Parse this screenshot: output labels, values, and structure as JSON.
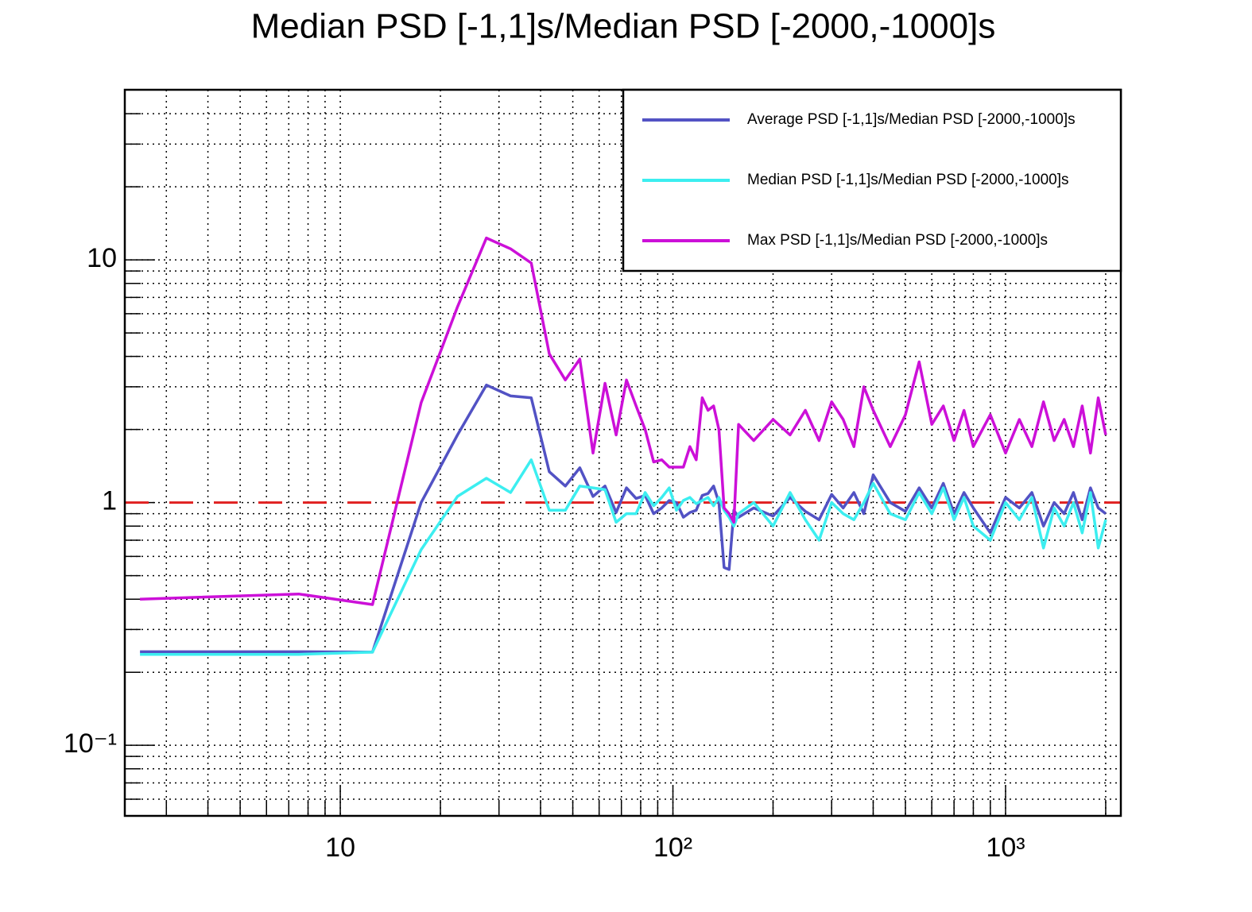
{
  "chart_data": {
    "type": "line",
    "title": "Median PSD [-1,1]s/Median PSD [-2000,-1000]s",
    "x": [
      2.5,
      7.5,
      12.5,
      17.5,
      22.5,
      27.5,
      32.5,
      37.5,
      42.5,
      47.5,
      52.5,
      57.5,
      62.5,
      67.5,
      72.5,
      77.5,
      82.5,
      87.5,
      92.5,
      97.5,
      102.5,
      107.5,
      112.5,
      117.5,
      122.5,
      127.5,
      132.5,
      137.5,
      142.5,
      147.5,
      152.5,
      157.5,
      175,
      200,
      225,
      250,
      275,
      300,
      325,
      350,
      375,
      400,
      450,
      500,
      550,
      600,
      650,
      700,
      750,
      800,
      900,
      1000,
      1100,
      1200,
      1300,
      1400,
      1500,
      1600,
      1700,
      1800,
      1900,
      2000
    ],
    "series": [
      {
        "name": "Average PSD [-1,1]s/Median PSD [-2000,-1000]s",
        "color": "#5252c4",
        "values": [
          0.243,
          0.243,
          0.242,
          1.0,
          1.9,
          3.05,
          2.75,
          2.7,
          1.34,
          1.17,
          1.39,
          1.06,
          1.17,
          0.91,
          1.15,
          1.04,
          1.07,
          0.9,
          0.95,
          1.02,
          1.0,
          0.87,
          0.91,
          0.93,
          1.07,
          1.09,
          1.17,
          1.0,
          0.54,
          0.53,
          0.93,
          0.87,
          0.95,
          0.88,
          1.05,
          0.92,
          0.85,
          1.08,
          0.95,
          1.1,
          0.9,
          1.3,
          1.0,
          0.92,
          1.15,
          0.95,
          1.2,
          0.9,
          1.1,
          0.95,
          0.75,
          1.05,
          0.95,
          1.1,
          0.8,
          1.0,
          0.9,
          1.1,
          0.85,
          1.15,
          0.95,
          0.9
        ]
      },
      {
        "name": "Median PSD [-1,1]s/Median PSD [-2000,-1000]s",
        "color": "#3ceef0",
        "values": [
          0.237,
          0.237,
          0.242,
          0.64,
          1.06,
          1.26,
          1.1,
          1.5,
          0.93,
          0.93,
          1.17,
          1.15,
          1.13,
          0.83,
          0.9,
          0.9,
          1.1,
          0.97,
          1.05,
          1.15,
          0.93,
          1.02,
          1.05,
          0.99,
          1.02,
          1.05,
          0.97,
          1.05,
          0.93,
          0.87,
          0.8,
          0.9,
          1.0,
          0.8,
          1.1,
          0.85,
          0.7,
          1.0,
          0.9,
          0.85,
          1.0,
          1.2,
          0.9,
          0.85,
          1.1,
          0.9,
          1.15,
          0.85,
          1.05,
          0.8,
          0.7,
          1.0,
          0.85,
          1.05,
          0.65,
          0.95,
          0.8,
          1.0,
          0.75,
          1.1,
          0.65,
          0.85
        ]
      },
      {
        "name": "Max PSD [-1,1]s/Median PSD [-2000,-1000]s",
        "color": "#cc10d8",
        "values": [
          0.4,
          0.42,
          0.38,
          2.58,
          6.4,
          12.3,
          11.1,
          9.7,
          4.1,
          3.2,
          3.9,
          1.6,
          3.1,
          1.9,
          3.2,
          2.5,
          2.0,
          1.47,
          1.5,
          1.4,
          1.4,
          1.4,
          1.7,
          1.5,
          2.7,
          2.4,
          2.5,
          2.0,
          0.95,
          0.9,
          0.83,
          2.1,
          1.8,
          2.2,
          1.9,
          2.4,
          1.8,
          2.6,
          2.2,
          1.7,
          3.0,
          2.4,
          1.7,
          2.3,
          3.8,
          2.1,
          2.5,
          1.8,
          2.4,
          1.7,
          2.3,
          1.6,
          2.2,
          1.7,
          2.6,
          1.8,
          2.2,
          1.7,
          2.5,
          1.6,
          2.7,
          1.9
        ]
      }
    ],
    "xlim": [
      2.25,
      2221
    ],
    "ylim": [
      0.0512,
      50.2
    ],
    "xscale": "log",
    "yscale": "log",
    "xticks": [
      10,
      {
        "value": 100,
        "label": "10²"
      },
      {
        "value": 1000,
        "label": "10³"
      }
    ],
    "yticks": [
      {
        "value": 0.1,
        "label": "10⁻¹"
      },
      1,
      10
    ],
    "xminor": [
      3,
      4,
      5,
      6,
      7,
      8,
      9,
      20,
      30,
      40,
      50,
      60,
      70,
      80,
      90,
      200,
      300,
      400,
      500,
      600,
      700,
      800,
      900,
      2000
    ],
    "yminor": [
      0.06,
      0.07,
      0.08,
      0.09,
      0.2,
      0.3,
      0.4,
      0.5,
      0.6,
      0.7,
      0.8,
      0.9,
      2,
      3,
      4,
      5,
      6,
      7,
      8,
      9,
      20,
      30,
      40
    ],
    "grid": true,
    "reference_line": {
      "value": 1,
      "color": "#e02020"
    },
    "legend": "top-right"
  }
}
